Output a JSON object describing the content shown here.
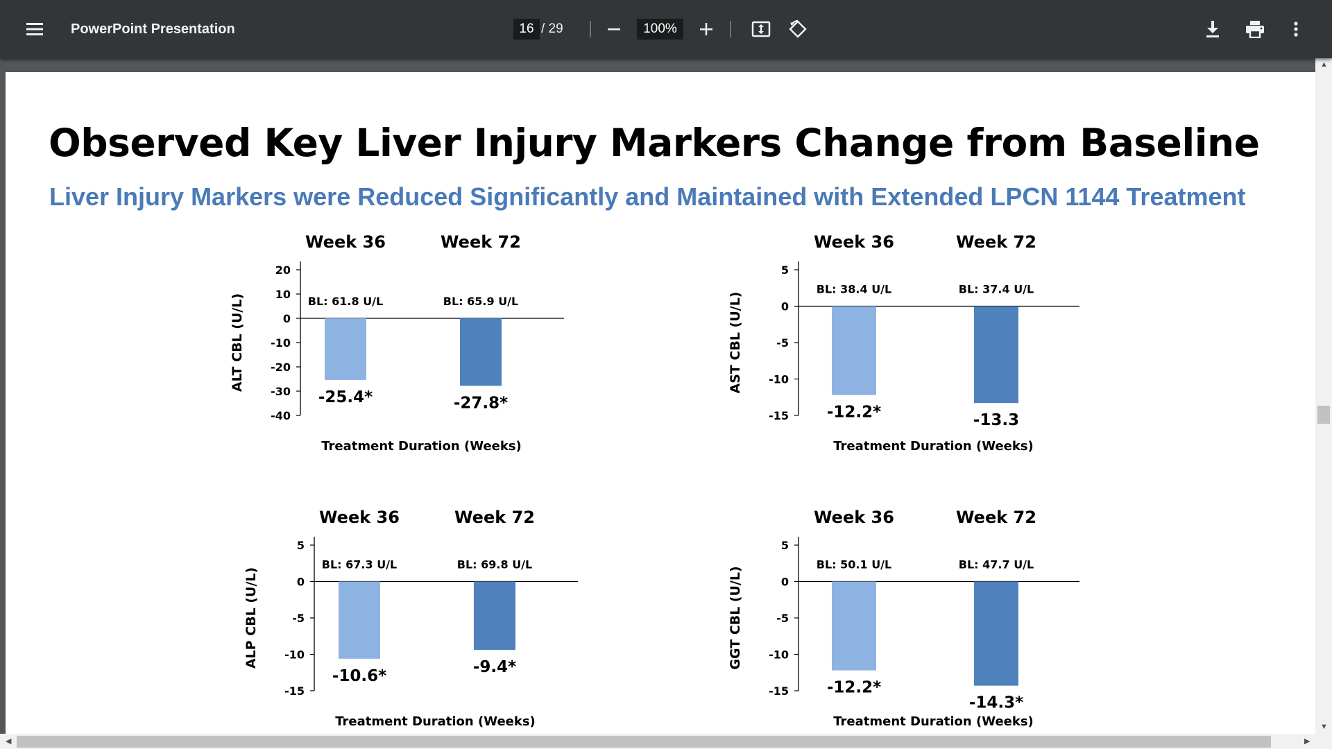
{
  "toolbar": {
    "title": "PowerPoint Presentation",
    "page_current": "16",
    "page_total": "/ 29",
    "zoom": "100%",
    "icons": [
      "menu-icon",
      "zoom-out-icon",
      "zoom-in-icon",
      "fit-page-icon",
      "rotate-icon",
      "download-icon",
      "print-icon",
      "more-vert-icon"
    ]
  },
  "slide": {
    "title": "Observed Key Liver Injury Markers Change from Baseline",
    "subtitle": "Liver Injury Markers were Reduced Significantly and Maintained with Extended LPCN 1144 Treatment"
  },
  "colors": {
    "week36": "#8db3e2",
    "week72": "#4f81bd"
  },
  "chart_data": [
    {
      "type": "bar",
      "ylabel": "ALT CBL (U/L)",
      "xlabel": "Treatment Duration (Weeks)",
      "categories": [
        "Week 36",
        "Week 72"
      ],
      "baselines": [
        "BL: 61.8 U/L",
        "BL: 65.9 U/L"
      ],
      "values": [
        -25.4,
        -27.8
      ],
      "value_labels": [
        "-25.4*",
        "-27.8*"
      ],
      "ylim": [
        -40,
        20
      ],
      "yticks": [
        20,
        10,
        0,
        -10,
        -20,
        -30,
        -40
      ]
    },
    {
      "type": "bar",
      "ylabel": "AST CBL (U/L)",
      "xlabel": "Treatment Duration (Weeks)",
      "categories": [
        "Week 36",
        "Week 72"
      ],
      "baselines": [
        "BL: 38.4 U/L",
        "BL: 37.4 U/L"
      ],
      "values": [
        -12.2,
        -13.3
      ],
      "value_labels": [
        "-12.2*",
        "-13.3"
      ],
      "ylim": [
        -15,
        5
      ],
      "yticks": [
        5,
        0,
        -5,
        -10,
        -15
      ]
    },
    {
      "type": "bar",
      "ylabel": "ALP CBL (U/L)",
      "xlabel": "Treatment Duration (Weeks)",
      "categories": [
        "Week 36",
        "Week 72"
      ],
      "baselines": [
        "BL: 67.3 U/L",
        "BL: 69.8 U/L"
      ],
      "values": [
        -10.6,
        -9.4
      ],
      "value_labels": [
        "-10.6*",
        "-9.4*"
      ],
      "ylim": [
        -15,
        5
      ],
      "yticks": [
        5,
        0,
        -5,
        -10,
        -15
      ]
    },
    {
      "type": "bar",
      "ylabel": "GGT CBL (U/L)",
      "xlabel": "Treatment Duration (Weeks)",
      "categories": [
        "Week 36",
        "Week 72"
      ],
      "baselines": [
        "BL: 50.1 U/L",
        "BL: 47.7 U/L"
      ],
      "values": [
        -12.2,
        -14.3
      ],
      "value_labels": [
        "-12.2*",
        "-14.3*"
      ],
      "ylim": [
        -15,
        5
      ],
      "yticks": [
        5,
        0,
        -5,
        -10,
        -15
      ]
    }
  ]
}
